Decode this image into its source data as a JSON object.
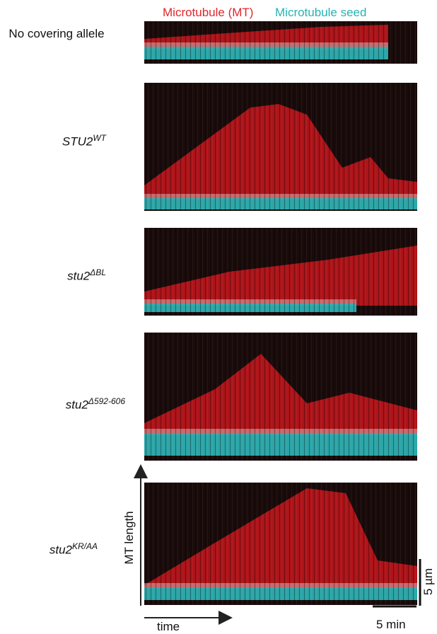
{
  "legend": {
    "mt": "Microtubule (MT)",
    "seed": "Microtubule seed"
  },
  "rows": [
    {
      "label": "No covering allele"
    },
    {
      "label": "STU2",
      "sup": "WT"
    },
    {
      "label": "stu2",
      "sup": "ΔBL"
    },
    {
      "label": "stu2",
      "sup": "Δ592-606"
    },
    {
      "label": "stu2",
      "sup": "KR/AA"
    }
  ],
  "axes": {
    "y": "MT length",
    "x": "time"
  },
  "scale_bars": {
    "length": "5 µm",
    "time": "5 min"
  }
}
